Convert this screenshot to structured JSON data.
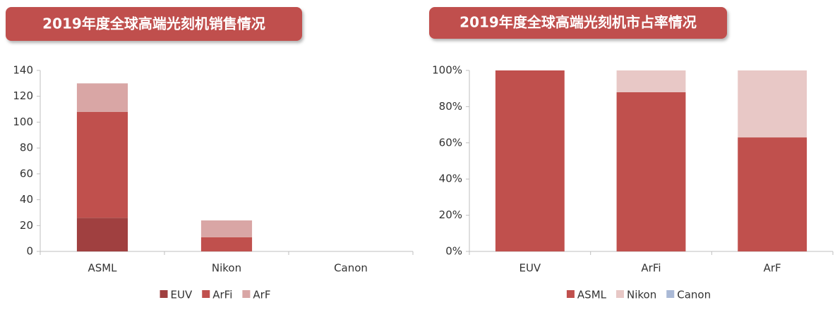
{
  "chart_data": [
    {
      "type": "stacked-bar",
      "title": "2019年度全球高端光刻机销售情况",
      "categories": [
        "ASML",
        "Nikon",
        "Canon"
      ],
      "series": [
        {
          "name": "EUV",
          "color": "#a04040",
          "values": [
            26,
            0,
            0
          ]
        },
        {
          "name": "ArFi",
          "color": "#c0504d",
          "values": [
            82,
            11,
            0
          ]
        },
        {
          "name": "ArF",
          "color": "#d9a6a5",
          "values": [
            22,
            13,
            0
          ]
        }
      ],
      "ylim": [
        0,
        140
      ],
      "yticks": [
        0,
        20,
        40,
        60,
        80,
        100,
        120,
        140
      ],
      "legend": "bottom"
    },
    {
      "type": "stacked-bar",
      "title": "2019年度全球高端光刻机市占率情况",
      "categories": [
        "EUV",
        "ArFi",
        "ArF"
      ],
      "series": [
        {
          "name": "ASML",
          "color": "#c0504d",
          "values": [
            100,
            88,
            63
          ]
        },
        {
          "name": "Nikon",
          "color": "#e8c8c6",
          "values": [
            0,
            12,
            37
          ]
        },
        {
          "name": "Canon",
          "color": "#aab9d6",
          "values": [
            0,
            0,
            0
          ]
        }
      ],
      "ylim": [
        0,
        100
      ],
      "yticks": [
        {
          "value": 0,
          "label": "0%"
        },
        {
          "value": 20,
          "label": "20%"
        },
        {
          "value": 40,
          "label": "40%"
        },
        {
          "value": 60,
          "label": "60%"
        },
        {
          "value": 80,
          "label": "80%"
        },
        {
          "value": 100,
          "label": "100%"
        }
      ],
      "legend": "bottom"
    }
  ]
}
